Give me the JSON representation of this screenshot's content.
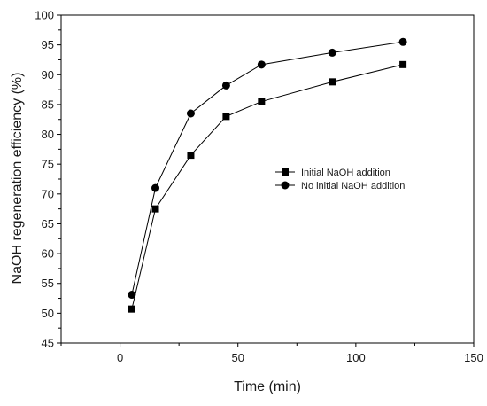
{
  "chart_data": {
    "type": "line",
    "xlabel": "Time (min)",
    "ylabel": "NaOH regeneration efficiency (%)",
    "xlim": [
      -25,
      150
    ],
    "ylim": [
      45,
      100
    ],
    "xticks": [
      0,
      50,
      100,
      150
    ],
    "yticks": [
      45,
      50,
      55,
      60,
      65,
      70,
      75,
      80,
      85,
      90,
      95,
      100
    ],
    "grid": false,
    "legend_position": "right-middle",
    "series": [
      {
        "name": "Initial NaOH addition",
        "marker": "square",
        "color": "#000000",
        "x": [
          5,
          15,
          30,
          45,
          60,
          90,
          120
        ],
        "y": [
          50.7,
          67.5,
          76.5,
          83.0,
          85.5,
          88.8,
          91.7
        ]
      },
      {
        "name": "No initial NaOH addition",
        "marker": "circle",
        "color": "#000000",
        "x": [
          5,
          15,
          30,
          45,
          60,
          90,
          120
        ],
        "y": [
          53.1,
          71.0,
          83.5,
          88.2,
          91.7,
          93.7,
          95.5
        ]
      }
    ]
  }
}
